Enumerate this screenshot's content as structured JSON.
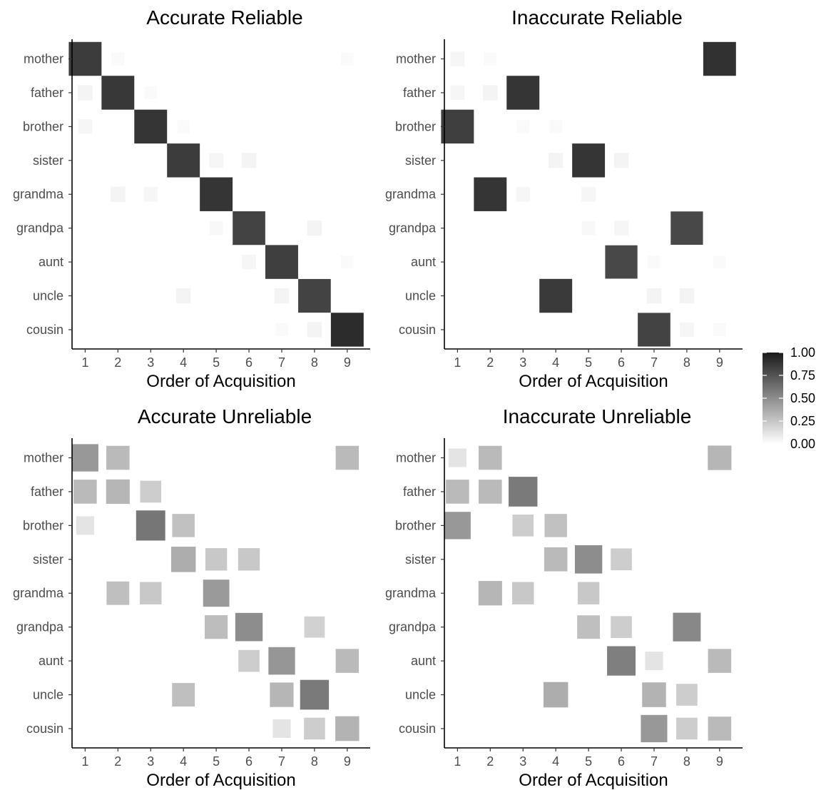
{
  "chart_data": [
    {
      "type": "heatmap",
      "title": "Accurate Reliable",
      "xlabel": "Order of Acquisition",
      "ylabel": "",
      "x": [
        1,
        2,
        3,
        4,
        5,
        6,
        7,
        8,
        9
      ],
      "rows": [
        "mother",
        "father",
        "brother",
        "sister",
        "grandma",
        "grandpa",
        "aunt",
        "uncle",
        "cousin"
      ],
      "cells": [
        {
          "row": "mother",
          "x": 1,
          "value": 0.85
        },
        {
          "row": "mother",
          "x": 2,
          "value": 0.02
        },
        {
          "row": "mother",
          "x": 9,
          "value": 0.02
        },
        {
          "row": "father",
          "x": 1,
          "value": 0.05
        },
        {
          "row": "father",
          "x": 2,
          "value": 0.87
        },
        {
          "row": "father",
          "x": 3,
          "value": 0.02
        },
        {
          "row": "brother",
          "x": 1,
          "value": 0.04
        },
        {
          "row": "brother",
          "x": 3,
          "value": 0.88
        },
        {
          "row": "brother",
          "x": 4,
          "value": 0.02
        },
        {
          "row": "sister",
          "x": 4,
          "value": 0.85
        },
        {
          "row": "sister",
          "x": 5,
          "value": 0.04
        },
        {
          "row": "sister",
          "x": 6,
          "value": 0.05
        },
        {
          "row": "grandma",
          "x": 2,
          "value": 0.05
        },
        {
          "row": "grandma",
          "x": 3,
          "value": 0.04
        },
        {
          "row": "grandma",
          "x": 5,
          "value": 0.88
        },
        {
          "row": "grandpa",
          "x": 5,
          "value": 0.03
        },
        {
          "row": "grandpa",
          "x": 6,
          "value": 0.82
        },
        {
          "row": "grandpa",
          "x": 8,
          "value": 0.05
        },
        {
          "row": "aunt",
          "x": 6,
          "value": 0.04
        },
        {
          "row": "aunt",
          "x": 7,
          "value": 0.84
        },
        {
          "row": "aunt",
          "x": 9,
          "value": 0.02
        },
        {
          "row": "uncle",
          "x": 4,
          "value": 0.05
        },
        {
          "row": "uncle",
          "x": 7,
          "value": 0.05
        },
        {
          "row": "uncle",
          "x": 8,
          "value": 0.82
        },
        {
          "row": "cousin",
          "x": 7,
          "value": 0.02
        },
        {
          "row": "cousin",
          "x": 8,
          "value": 0.05
        },
        {
          "row": "cousin",
          "x": 9,
          "value": 0.92
        }
      ]
    },
    {
      "type": "heatmap",
      "title": "Inaccurate Reliable",
      "xlabel": "Order of Acquisition",
      "ylabel": "",
      "x": [
        1,
        2,
        3,
        4,
        5,
        6,
        7,
        8,
        9
      ],
      "rows": [
        "mother",
        "father",
        "brother",
        "sister",
        "grandma",
        "grandpa",
        "aunt",
        "uncle",
        "cousin"
      ],
      "cells": [
        {
          "row": "mother",
          "x": 1,
          "value": 0.04
        },
        {
          "row": "mother",
          "x": 2,
          "value": 0.02
        },
        {
          "row": "mother",
          "x": 9,
          "value": 0.9
        },
        {
          "row": "father",
          "x": 1,
          "value": 0.04
        },
        {
          "row": "father",
          "x": 2,
          "value": 0.05
        },
        {
          "row": "father",
          "x": 3,
          "value": 0.88
        },
        {
          "row": "brother",
          "x": 1,
          "value": 0.84
        },
        {
          "row": "brother",
          "x": 3,
          "value": 0.02
        },
        {
          "row": "brother",
          "x": 4,
          "value": 0.02
        },
        {
          "row": "sister",
          "x": 4,
          "value": 0.05
        },
        {
          "row": "sister",
          "x": 5,
          "value": 0.88
        },
        {
          "row": "sister",
          "x": 6,
          "value": 0.05
        },
        {
          "row": "grandma",
          "x": 2,
          "value": 0.88
        },
        {
          "row": "grandma",
          "x": 3,
          "value": 0.04
        },
        {
          "row": "grandma",
          "x": 5,
          "value": 0.04
        },
        {
          "row": "grandpa",
          "x": 5,
          "value": 0.03
        },
        {
          "row": "grandpa",
          "x": 6,
          "value": 0.04
        },
        {
          "row": "grandpa",
          "x": 8,
          "value": 0.8
        },
        {
          "row": "aunt",
          "x": 6,
          "value": 0.8
        },
        {
          "row": "aunt",
          "x": 7,
          "value": 0.02
        },
        {
          "row": "aunt",
          "x": 9,
          "value": 0.02
        },
        {
          "row": "uncle",
          "x": 4,
          "value": 0.86
        },
        {
          "row": "uncle",
          "x": 7,
          "value": 0.05
        },
        {
          "row": "uncle",
          "x": 8,
          "value": 0.05
        },
        {
          "row": "cousin",
          "x": 7,
          "value": 0.82
        },
        {
          "row": "cousin",
          "x": 8,
          "value": 0.04
        },
        {
          "row": "cousin",
          "x": 9,
          "value": 0.02
        }
      ]
    },
    {
      "type": "heatmap",
      "title": "Accurate Unreliable",
      "xlabel": "Order of Acquisition",
      "ylabel": "",
      "x": [
        1,
        2,
        3,
        4,
        5,
        6,
        7,
        8,
        9
      ],
      "rows": [
        "mother",
        "father",
        "brother",
        "sister",
        "grandma",
        "grandpa",
        "aunt",
        "uncle",
        "cousin"
      ],
      "cells": [
        {
          "row": "mother",
          "x": 1,
          "value": 0.45
        },
        {
          "row": "mother",
          "x": 2,
          "value": 0.3
        },
        {
          "row": "mother",
          "x": 9,
          "value": 0.3
        },
        {
          "row": "father",
          "x": 1,
          "value": 0.3
        },
        {
          "row": "father",
          "x": 2,
          "value": 0.32
        },
        {
          "row": "father",
          "x": 3,
          "value": 0.22
        },
        {
          "row": "brother",
          "x": 1,
          "value": 0.12
        },
        {
          "row": "brother",
          "x": 3,
          "value": 0.6
        },
        {
          "row": "brother",
          "x": 4,
          "value": 0.27
        },
        {
          "row": "sister",
          "x": 4,
          "value": 0.36
        },
        {
          "row": "sister",
          "x": 5,
          "value": 0.24
        },
        {
          "row": "sister",
          "x": 6,
          "value": 0.24
        },
        {
          "row": "grandma",
          "x": 2,
          "value": 0.28
        },
        {
          "row": "grandma",
          "x": 3,
          "value": 0.24
        },
        {
          "row": "grandma",
          "x": 5,
          "value": 0.44
        },
        {
          "row": "grandpa",
          "x": 5,
          "value": 0.29
        },
        {
          "row": "grandpa",
          "x": 6,
          "value": 0.5
        },
        {
          "row": "grandpa",
          "x": 8,
          "value": 0.2
        },
        {
          "row": "aunt",
          "x": 6,
          "value": 0.22
        },
        {
          "row": "aunt",
          "x": 7,
          "value": 0.46
        },
        {
          "row": "aunt",
          "x": 9,
          "value": 0.3
        },
        {
          "row": "uncle",
          "x": 4,
          "value": 0.28
        },
        {
          "row": "uncle",
          "x": 7,
          "value": 0.32
        },
        {
          "row": "uncle",
          "x": 8,
          "value": 0.58
        },
        {
          "row": "cousin",
          "x": 7,
          "value": 0.12
        },
        {
          "row": "cousin",
          "x": 8,
          "value": 0.22
        },
        {
          "row": "cousin",
          "x": 9,
          "value": 0.33
        }
      ]
    },
    {
      "type": "heatmap",
      "title": "Inaccurate Unreliable",
      "xlabel": "Order of Acquisition",
      "ylabel": "",
      "x": [
        1,
        2,
        3,
        4,
        5,
        6,
        7,
        8,
        9
      ],
      "rows": [
        "mother",
        "father",
        "brother",
        "sister",
        "grandma",
        "grandpa",
        "aunt",
        "uncle",
        "cousin"
      ],
      "cells": [
        {
          "row": "mother",
          "x": 1,
          "value": 0.12
        },
        {
          "row": "mother",
          "x": 2,
          "value": 0.3
        },
        {
          "row": "mother",
          "x": 9,
          "value": 0.32
        },
        {
          "row": "father",
          "x": 1,
          "value": 0.3
        },
        {
          "row": "father",
          "x": 2,
          "value": 0.3
        },
        {
          "row": "father",
          "x": 3,
          "value": 0.58
        },
        {
          "row": "brother",
          "x": 1,
          "value": 0.45
        },
        {
          "row": "brother",
          "x": 3,
          "value": 0.22
        },
        {
          "row": "brother",
          "x": 4,
          "value": 0.27
        },
        {
          "row": "sister",
          "x": 4,
          "value": 0.3
        },
        {
          "row": "sister",
          "x": 5,
          "value": 0.5
        },
        {
          "row": "sister",
          "x": 6,
          "value": 0.22
        },
        {
          "row": "grandma",
          "x": 2,
          "value": 0.32
        },
        {
          "row": "grandma",
          "x": 3,
          "value": 0.24
        },
        {
          "row": "grandma",
          "x": 5,
          "value": 0.24
        },
        {
          "row": "grandpa",
          "x": 5,
          "value": 0.28
        },
        {
          "row": "grandpa",
          "x": 6,
          "value": 0.22
        },
        {
          "row": "grandpa",
          "x": 8,
          "value": 0.52
        },
        {
          "row": "aunt",
          "x": 6,
          "value": 0.56
        },
        {
          "row": "aunt",
          "x": 7,
          "value": 0.12
        },
        {
          "row": "aunt",
          "x": 9,
          "value": 0.3
        },
        {
          "row": "uncle",
          "x": 4,
          "value": 0.36
        },
        {
          "row": "uncle",
          "x": 7,
          "value": 0.33
        },
        {
          "row": "uncle",
          "x": 8,
          "value": 0.22
        },
        {
          "row": "cousin",
          "x": 7,
          "value": 0.45
        },
        {
          "row": "cousin",
          "x": 8,
          "value": 0.22
        },
        {
          "row": "cousin",
          "x": 9,
          "value": 0.3
        }
      ]
    }
  ],
  "legend": {
    "position": "right",
    "colors": [
      "#ffffff",
      "#1a1a1a"
    ],
    "range": [
      0,
      1
    ],
    "ticks": [
      "1.00",
      "0.75",
      "0.50",
      "0.25",
      "0.00"
    ]
  }
}
